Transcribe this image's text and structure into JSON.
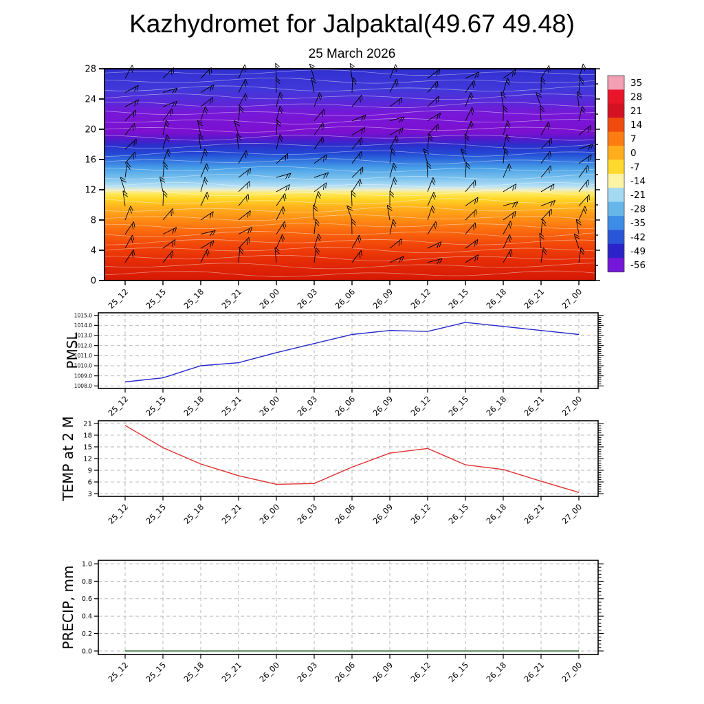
{
  "page": {
    "title": "Kazhydromet for Jalpaktal(49.67 49.48)",
    "subtitle": "25 March 2026"
  },
  "time_labels": [
    "25_12",
    "25_15",
    "25_18",
    "25_21",
    "26_00",
    "26_03",
    "26_06",
    "26_09",
    "26_12",
    "26_15",
    "26_18",
    "26_21",
    "27_00"
  ],
  "chart_data": [
    {
      "type": "heatmap",
      "name": "upper-air-temperature-cross-section",
      "overlay": "wind-barbs",
      "x": [
        "25_12",
        "25_15",
        "25_18",
        "25_21",
        "26_00",
        "26_03",
        "26_06",
        "26_09",
        "26_12",
        "26_15",
        "26_18",
        "26_21",
        "27_00"
      ],
      "y_ticks": [
        0,
        4,
        8,
        12,
        16,
        20,
        24,
        28
      ],
      "y_range": [
        0,
        28
      ],
      "colorbar_labels": [
        "35",
        "28",
        "21",
        "14",
        "7",
        "0",
        "-7",
        "-14",
        "-21",
        "-28",
        "-35",
        "-42",
        "-49",
        "-56"
      ],
      "colorbar_colors": [
        "#f2a0b4",
        "#e8152b",
        "#d31122",
        "#ef4b0e",
        "#fb7d12",
        "#ffad1d",
        "#ffd92e",
        "#fdf3a5",
        "#a5d9f2",
        "#67b6ea",
        "#3d8de6",
        "#2a55d6",
        "#2b22c8",
        "#7417d8"
      ],
      "fill_gradient": [
        {
          "pos": 0.0,
          "color": "#3030d0"
        },
        {
          "pos": 0.1,
          "color": "#4238da"
        },
        {
          "pos": 0.16,
          "color": "#5a28d8"
        },
        {
          "pos": 0.21,
          "color": "#7718d8"
        },
        {
          "pos": 0.3,
          "color": "#7c10d0"
        },
        {
          "pos": 0.33,
          "color": "#5518cc"
        },
        {
          "pos": 0.36,
          "color": "#2d2ecc"
        },
        {
          "pos": 0.4,
          "color": "#2348d4"
        },
        {
          "pos": 0.43,
          "color": "#2f6ede"
        },
        {
          "pos": 0.47,
          "color": "#49a0e8"
        },
        {
          "pos": 0.52,
          "color": "#7ec4ee"
        },
        {
          "pos": 0.555,
          "color": "#b5e0f5"
        },
        {
          "pos": 0.572,
          "color": "#eeeec8"
        },
        {
          "pos": 0.59,
          "color": "#ffe95e"
        },
        {
          "pos": 0.615,
          "color": "#ffd626"
        },
        {
          "pos": 0.65,
          "color": "#ffb51e"
        },
        {
          "pos": 0.7,
          "color": "#ff9416"
        },
        {
          "pos": 0.76,
          "color": "#fb6d0e"
        },
        {
          "pos": 0.83,
          "color": "#f2470a"
        },
        {
          "pos": 0.9,
          "color": "#e62d06"
        },
        {
          "pos": 1.0,
          "color": "#d51805"
        }
      ]
    },
    {
      "type": "line",
      "name": "pmsl",
      "ylabel": "PMSL",
      "line_color": "#2828cc",
      "ylim": [
        1008,
        1015
      ],
      "y_tick_labels": [
        "1015.0",
        "1014.0",
        "1013.0",
        "1012.0",
        "1011.0",
        "1010.0",
        "1009.0",
        "1008.0"
      ],
      "x": [
        "25_12",
        "25_15",
        "25_18",
        "25_21",
        "26_00",
        "26_03",
        "26_06",
        "26_09",
        "26_12",
        "26_15",
        "26_18",
        "26_21",
        "27_00"
      ],
      "values": [
        1008.4,
        1008.8,
        1010.0,
        1010.3,
        1011.3,
        1012.2,
        1013.1,
        1013.5,
        1013.4,
        1014.3,
        1013.9,
        1013.5,
        1013.1
      ]
    },
    {
      "type": "line",
      "name": "temp-2m",
      "ylabel": "TEMP at 2 M",
      "line_color": "#e03030",
      "ylim": [
        3,
        21
      ],
      "y_tick_labels": [
        "21",
        "18",
        "15",
        "12",
        "9",
        "6",
        "3"
      ],
      "x": [
        "25_12",
        "25_15",
        "25_18",
        "25_21",
        "26_00",
        "26_03",
        "26_06",
        "26_09",
        "26_12",
        "26_15",
        "26_18",
        "26_21",
        "27_00"
      ],
      "values": [
        20.5,
        14.8,
        10.6,
        7.6,
        5.4,
        5.6,
        9.8,
        13.4,
        14.6,
        10.4,
        9.2,
        6.2,
        3.3
      ]
    },
    {
      "type": "line",
      "name": "precip",
      "ylabel": "PRECIP, mm",
      "line_color": "#1a5c1a",
      "ylim": [
        0,
        1
      ],
      "y_tick_labels": [
        "1.0",
        "0.8",
        "0.6",
        "0.4",
        "0.2",
        "0.0"
      ],
      "x": [
        "25_12",
        "25_15",
        "25_18",
        "25_21",
        "26_00",
        "26_03",
        "26_06",
        "26_09",
        "26_12",
        "26_15",
        "26_18",
        "26_21",
        "27_00"
      ],
      "values": [
        0,
        0,
        0,
        0,
        0,
        0,
        0,
        0,
        0,
        0,
        0,
        0,
        0
      ]
    }
  ]
}
